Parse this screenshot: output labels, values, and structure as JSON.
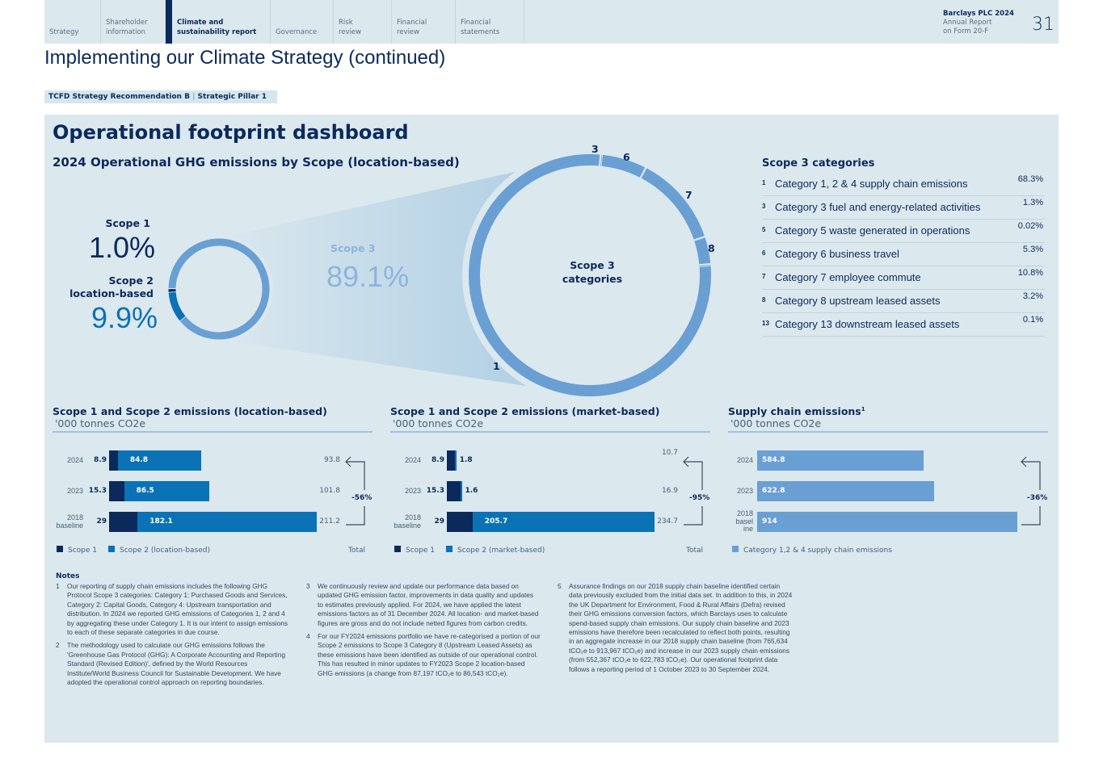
{
  "nav": {
    "tabs": [
      "Strategy",
      "Shareholder information",
      "Climate and sustainability report",
      "Governance",
      "Risk review",
      "Financial review",
      "Financial statements"
    ],
    "active": 2,
    "report_title": "Barclays PLC 2024",
    "report_sub1": "Annual Report",
    "report_sub2": "on Form 20-F",
    "page": "31"
  },
  "page_title": "Implementing our Climate Strategy (continued)",
  "tag": {
    "left": "TCFD Strategy Recommendation B",
    "right": "Strategic Pillar 1"
  },
  "dashboard": {
    "title": "Operational footprint dashboard",
    "subtitle": "2024 Operational GHG emissions by Scope (location-based)"
  },
  "colors": {
    "navy": "#0b2a5b",
    "scope2": "#0a72b5",
    "scope3": "#6a9fd3",
    "panel": "#dbe8ee"
  },
  "donut": {
    "scope1": {
      "label": "Scope 1",
      "value": "1.0%",
      "pct": 1.0
    },
    "scope2": {
      "label": "Scope 2 location-based",
      "value": "9.9%",
      "pct": 9.9
    },
    "scope3": {
      "label": "Scope 3",
      "value": "89.1%",
      "pct": 89.1
    },
    "center_label": "Scope 3 categories",
    "segment_labels": [
      "3",
      "6",
      "7",
      "8",
      "1"
    ]
  },
  "scope3_table": {
    "title": "Scope 3 categories",
    "rows": [
      {
        "n": "1",
        "label": "Category 1, 2 & 4 supply chain emissions",
        "value": "68.3%",
        "pct": 68.3
      },
      {
        "n": "3",
        "label": "Category 3 fuel and energy-related activities",
        "value": "1.3%",
        "pct": 1.3
      },
      {
        "n": "5",
        "label": "Category 5 waste generated in operations",
        "value": "0.02%",
        "pct": 0.02
      },
      {
        "n": "6",
        "label": "Category 6 business travel",
        "value": "5.3%",
        "pct": 5.3
      },
      {
        "n": "7",
        "label": "Category 7 employee commute",
        "value": "10.8%",
        "pct": 10.8
      },
      {
        "n": "8",
        "label": "Category 8 upstream leased assets",
        "value": "3.2%",
        "pct": 3.2
      },
      {
        "n": "13",
        "label": "Category 13 downstream leased assets",
        "value": "0.1%",
        "pct": 0.1
      }
    ]
  },
  "chart_data": [
    {
      "type": "bar",
      "title": "Scope 1 and Scope 2 emissions (location-based)",
      "unit": "'000 tonnes CO2e",
      "categories": [
        "2024",
        "2023",
        "2018 baseline"
      ],
      "series": [
        {
          "name": "Scope 1",
          "values": [
            8.9,
            15.3,
            29.0
          ]
        },
        {
          "name": "Scope 2 (location-based)",
          "values": [
            84.8,
            86.5,
            182.1
          ]
        }
      ],
      "totals": [
        93.8,
        101.8,
        211.2
      ],
      "total_label": "Total",
      "change": "-56%"
    },
    {
      "type": "bar",
      "title": "Scope 1 and Scope 2 emissions (market-based)",
      "unit": "'000 tonnes CO2e",
      "categories": [
        "2024",
        "2023",
        "2018 baseline"
      ],
      "series": [
        {
          "name": "Scope 1",
          "values": [
            8.9,
            15.3,
            29.0
          ]
        },
        {
          "name": "Scope 2 (market-based)",
          "values": [
            1.8,
            1.6,
            205.7
          ]
        }
      ],
      "totals": [
        10.7,
        16.9,
        234.7
      ],
      "total_label": "Total",
      "change": "-95%"
    },
    {
      "type": "bar",
      "title": "Supply chain emissions",
      "title_sup": "1",
      "unit": "'000 tonnes CO2e",
      "categories": [
        "2024",
        "2023",
        "2018 basel ine"
      ],
      "series": [
        {
          "name": "Category 1,2 & 4 supply chain emissions",
          "values": [
            584.8,
            622.8,
            914.0
          ]
        }
      ],
      "change": "-36%"
    }
  ],
  "notes": {
    "title": "Notes",
    "items": [
      {
        "n": "1",
        "text": "Our reporting of supply chain emissions includes the following GHG Protocol Scope 3 categories: Category 1: Purchased Goods and Services, Category 2: Capital Goods, Category 4: Upstream transportation and distribution. In 2024 we reported GHG emissions of Categories 1, 2 and 4 by aggregating these under Category 1. It is our intent to assign emissions to each of these separate categories in due course."
      },
      {
        "n": "2",
        "text": "The methodology used to calculate our GHG emissions follows the 'Greenhouse Gas Protocol (GHG): A Corporate Accounting and Reporting Standard (Revised Edition)', defined by the World Resources Institute/World Business Council for Sustainable Development. We have adopted the operational control approach on reporting boundaries."
      },
      {
        "n": "3",
        "text": "We continuously review and update our performance data based on updated GHG emission factor, improvements in data quality and updates to estimates previously applied. For 2024, we have applied the latest emissions factors as of 31 December 2024. All location- and market-based figures are gross and do not include netted figures from carbon credits."
      },
      {
        "n": "4",
        "text": "For our FY2024 emissions portfolio we have re-categorised a portion of our Scope 2 emissions to Scope 3 Category 8 (Upstream Leased Assets) as these emissions have been identified as outside of our operational control. This has resulted in minor updates to FY2023 Scope 2 location-based GHG emissions (a change from 87,197 tCO₂e to 86,543 tCO₂e)."
      },
      {
        "n": "5",
        "text": "Assurance findings on our 2018 supply chain baseline identified certain data previously excluded from the initial data set. In addition to this, in 2024 the UK Department for Environment, Food & Rural Affairs (Defra) revised their GHG emissions conversion factors, which Barclays uses to calculate spend-based supply chain emissions. Our supply chain baseline and 2023 emissions have therefore been recalculated to reflect both points, resulting in an aggregate increase in our 2018 supply chain baseline (from 765,634 tCO₂e to 913,967 tCO₂e) and increase in our 2023 supply chain emissions (from 552,367 tCO₂e to 622,783 tCO₂e). Our operational footprint data follows a reporting period of 1 October 2023 to 30 September 2024."
      }
    ]
  }
}
